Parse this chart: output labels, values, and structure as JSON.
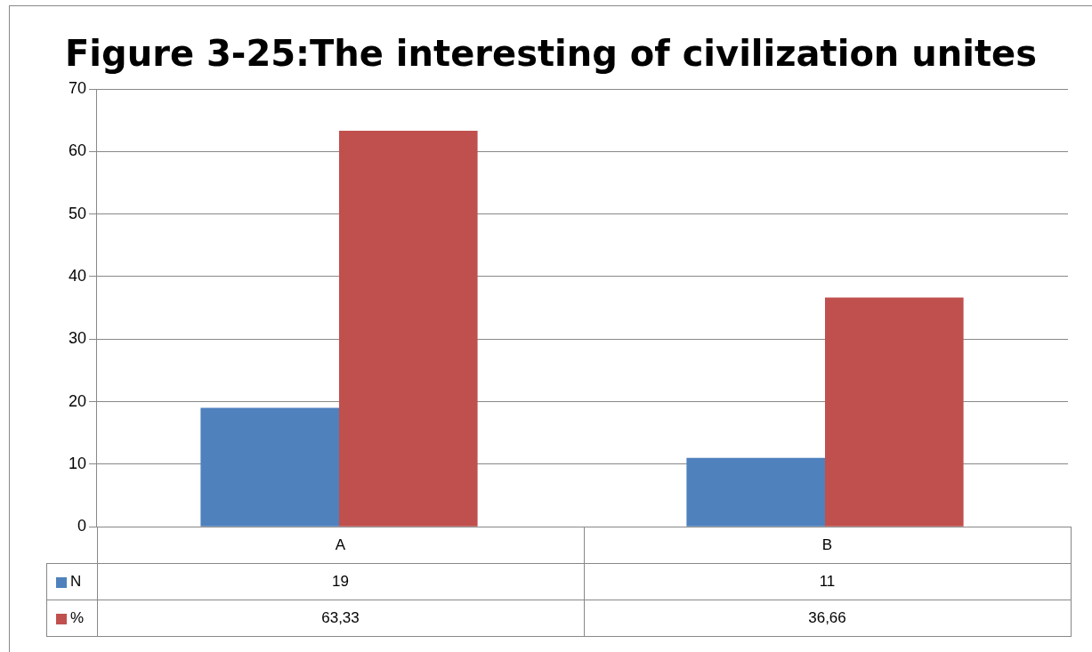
{
  "chart_data": {
    "type": "bar",
    "title": "Figure 3-25:The interesting of civilization unites",
    "categories": [
      "A",
      "B"
    ],
    "series": [
      {
        "name": "N",
        "color": "#4f81bd",
        "values": [
          19,
          11
        ],
        "value_labels": [
          "19",
          "11"
        ]
      },
      {
        "name": "%",
        "color": "#c0504d",
        "values": [
          63.33,
          36.66
        ],
        "value_labels": [
          "63,33",
          "36,66"
        ]
      }
    ],
    "ylim": [
      0,
      70
    ],
    "yticks": [
      0,
      10,
      20,
      30,
      40,
      50,
      60,
      70
    ],
    "grid": "y",
    "legend": "bottom"
  }
}
